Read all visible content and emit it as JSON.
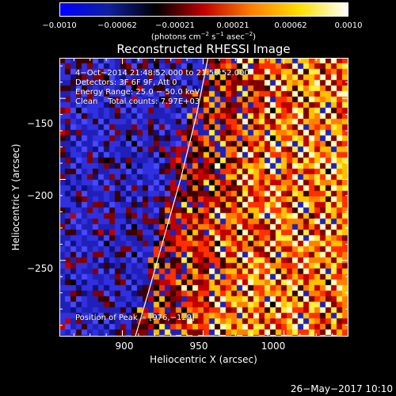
{
  "colorbar": {
    "ticks": [
      "−0.0010",
      "−0.00062",
      "−0.00021",
      "0.00021",
      "0.00062",
      "0.0010"
    ],
    "tick_values": [
      -0.001,
      -0.00062,
      -0.00021,
      0.00021,
      0.00062,
      0.001
    ],
    "range": [
      -0.001,
      0.001
    ],
    "units_prefix": "(photons cm",
    "units_sup1": "−2",
    "units_mid1": " s",
    "units_sup2": "−1",
    "units_mid2": " asec",
    "units_sup3": "−2",
    "units_suffix": ")",
    "colors": {
      "negative": [
        "#000000",
        "#1020a0",
        "#0000ff"
      ],
      "positive": [
        "#000000",
        "#c00000",
        "#ff8000",
        "#ffe000",
        "#ffffff"
      ]
    }
  },
  "annotation": {
    "time_range": "4−Oct−2014 21:48:52.000 to 21:50:52.000",
    "detectors": "Detectors: 3F 6F 9F, Att 0",
    "energy": "Energy Range: 25.0 − 50.0 keV",
    "clean": "Clean    Total counts: 7.97E+03",
    "peak": "Position of Peak = [976,−129]"
  },
  "footer": {
    "datestamp": "26−May−2017 10:10"
  },
  "chart_data": {
    "type": "heatmap",
    "title": "Reconstructed RHESSI Image",
    "xlabel": "Heliocentric X (arcsec)",
    "ylabel": "Heliocentric Y (arcsec)",
    "xlim": [
      861,
      1040
    ],
    "ylim": [
      -297,
      -125
    ],
    "xticks": [
      900,
      950,
      1000
    ],
    "xtick_labels": [
      "900",
      "950",
      "1000"
    ],
    "yticks": [
      -150,
      -200,
      -250
    ],
    "ytick_labels": [
      "−150",
      "−200",
      "−250"
    ],
    "colorbar_range": [
      -0.001,
      0.001
    ],
    "peak": [
      976,
      -129
    ],
    "limb_line": {
      "x": [
        908,
        916,
        926,
        936,
        946,
        953
      ],
      "y": [
        -297,
        -270,
        -235,
        -200,
        -160,
        -125
      ]
    }
  }
}
